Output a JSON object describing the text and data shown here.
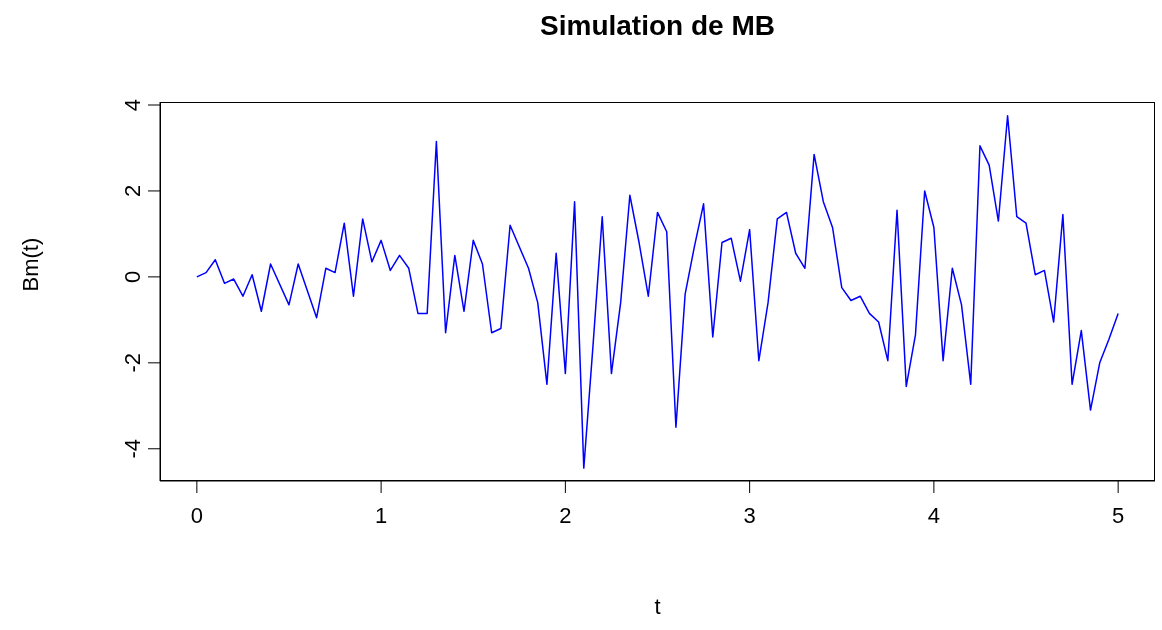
{
  "chart_data": {
    "type": "line",
    "title": "Simulation de MB",
    "xlabel": "t",
    "ylabel": "Bm(t)",
    "x": [
      0,
      0.05,
      0.1,
      0.15,
      0.2,
      0.25,
      0.3,
      0.35,
      0.4,
      0.5,
      0.55,
      0.65,
      0.7,
      0.75,
      0.8,
      0.85,
      0.9,
      0.95,
      1.0,
      1.05,
      1.1,
      1.15,
      1.2,
      1.25,
      1.3,
      1.35,
      1.4,
      1.45,
      1.5,
      1.55,
      1.6,
      1.65,
      1.7,
      1.8,
      1.85,
      1.9,
      1.95,
      2.0,
      2.05,
      2.1,
      2.15,
      2.2,
      2.25,
      2.3,
      2.35,
      2.4,
      2.45,
      2.5,
      2.55,
      2.6,
      2.65,
      2.7,
      2.75,
      2.8,
      2.85,
      2.9,
      2.95,
      3.0,
      3.05,
      3.1,
      3.15,
      3.2,
      3.25,
      3.3,
      3.35,
      3.4,
      3.45,
      3.5,
      3.55,
      3.6,
      3.65,
      3.7,
      3.75,
      3.8,
      3.85,
      3.9,
      3.95,
      4.0,
      4.05,
      4.1,
      4.15,
      4.2,
      4.25,
      4.3,
      4.35,
      4.4,
      4.45,
      4.5,
      4.55,
      4.6,
      4.65,
      4.7,
      4.75,
      4.8,
      4.85,
      4.9,
      4.95,
      5.0
    ],
    "series": [
      {
        "color": "#0000ff",
        "values": [
          0,
          0.1,
          0.4,
          -0.15,
          -0.05,
          -0.45,
          0.05,
          -0.8,
          0.3,
          -0.65,
          0.3,
          -0.95,
          0.2,
          0.1,
          1.25,
          -0.45,
          1.35,
          0.35,
          0.85,
          0.15,
          0.5,
          0.2,
          -0.85,
          -0.85,
          3.15,
          -1.3,
          0.5,
          -0.8,
          0.85,
          0.3,
          -1.3,
          -1.2,
          1.2,
          0.2,
          -0.6,
          -2.5,
          0.55,
          -2.25,
          1.75,
          -4.45,
          -1.6,
          1.4,
          -2.25,
          -0.6,
          1.9,
          0.8,
          -0.45,
          1.5,
          1.05,
          -3.5,
          -0.4,
          0.7,
          1.7,
          -1.4,
          0.8,
          0.9,
          -0.1,
          1.1,
          -1.95,
          -0.6,
          1.35,
          1.5,
          0.55,
          0.2,
          2.85,
          1.75,
          1.15,
          -0.25,
          -0.55,
          -0.45,
          -0.85,
          -1.05,
          -1.95,
          1.55,
          -2.55,
          -1.35,
          2.0,
          1.15,
          -1.95,
          0.2,
          -0.65,
          -2.5,
          3.05,
          2.6,
          1.3,
          3.75,
          1.4,
          1.25,
          0.05,
          0.15,
          -1.05,
          1.45,
          -2.5,
          -1.25,
          -3.1,
          -2.0,
          -1.45,
          -0.85
        ]
      }
    ],
    "xlim": [
      -0.2,
      5.2
    ],
    "xticks": [
      0,
      1,
      2,
      3,
      4,
      5
    ],
    "ylim": [
      -4.75,
      4.07
    ],
    "yticks": [
      -4,
      -2,
      0,
      2,
      4
    ],
    "grid": false,
    "legend": false,
    "marker": "none",
    "line_style": "solid"
  }
}
